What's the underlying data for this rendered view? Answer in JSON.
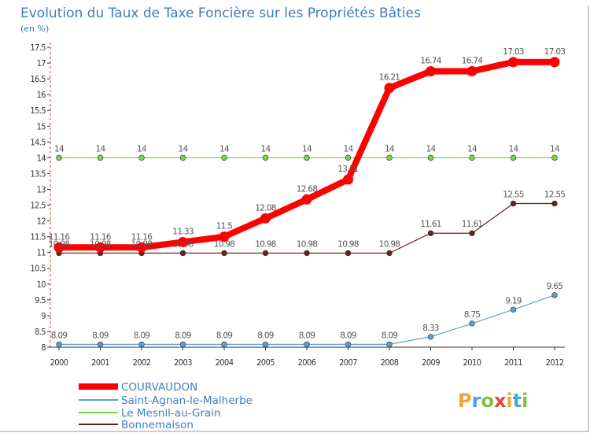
{
  "chart_data": {
    "type": "line",
    "title": "Evolution du Taux de Taxe Foncière sur les Propriétés Bâties",
    "subtitle": "(en %)",
    "xlabel": "",
    "ylabel": "(en %)",
    "ylim": [
      8,
      17.5
    ],
    "yticks": [
      "8",
      "8.5",
      "9",
      "9.5",
      "10",
      "10.5",
      "11",
      "11.5",
      "12",
      "12.5",
      "13",
      "13.5",
      "14",
      "14.5",
      "15",
      "15.5",
      "16",
      "16.5",
      "17",
      "17.5"
    ],
    "x": [
      "2000",
      "2001",
      "2002",
      "2003",
      "2004",
      "2005",
      "2006",
      "2007",
      "2008",
      "2009",
      "2010",
      "2011",
      "2012"
    ],
    "grid": false,
    "legend_position": "bottom-left",
    "series": [
      {
        "name": "Bonnemaison",
        "color": "#6b1f1f",
        "values": [
          10.98,
          10.98,
          10.98,
          10.98,
          10.98,
          10.98,
          10.98,
          10.98,
          10.98,
          11.61,
          11.61,
          12.55,
          12.55
        ],
        "labels": [
          "10.98",
          "10.98",
          "10.98",
          "10.98",
          "10.98",
          "10.98",
          "10.98",
          "10.98",
          "10.98",
          "11.61",
          "11.61",
          "12.55",
          "12.55"
        ]
      },
      {
        "name": "Le Mesnil-au-Grain",
        "color": "#7dd34a",
        "values": [
          14,
          14,
          14,
          14,
          14,
          14,
          14,
          14,
          14,
          14,
          14,
          14,
          14
        ],
        "labels": [
          "14",
          "14",
          "14",
          "14",
          "14",
          "14",
          "14",
          "14",
          "14",
          "14",
          "14",
          "14",
          "14"
        ]
      },
      {
        "name": "Saint-Agnan-le-Malherbe",
        "color": "#5b9fd6",
        "values": [
          8.09,
          8.09,
          8.09,
          8.09,
          8.09,
          8.09,
          8.09,
          8.09,
          8.09,
          8.33,
          8.75,
          9.19,
          9.65
        ],
        "labels": [
          "8.09",
          "8.09",
          "8.09",
          "8.09",
          "8.09",
          "8.09",
          "8.09",
          "8.09",
          "8.09",
          "8.33",
          "8.75",
          "9.19",
          "9.65"
        ]
      },
      {
        "name": "COURVAUDON",
        "color": "#ff0000",
        "values": [
          11.16,
          11.16,
          11.16,
          11.33,
          11.5,
          12.08,
          12.68,
          13.31,
          16.21,
          16.74,
          16.74,
          17.03,
          17.03
        ],
        "labels": [
          "11.16",
          "11.16",
          "11.16",
          "11.33",
          "11.5",
          "12.08",
          "12.68",
          "13.31",
          "16.21",
          "16.74",
          "16.74",
          "17.03",
          "17.03"
        ]
      }
    ],
    "legend": [
      "COURVAUDON",
      "Saint-Agnan-le-Malherbe",
      "Le Mesnil-au-Grain",
      "Bonnemaison"
    ]
  },
  "logo": {
    "text": "Proxiti",
    "colors": [
      "#f2a33a",
      "#4aa3df",
      "#7cc243",
      "#e8473c",
      "#f2a33a",
      "#4aa3df",
      "#7cc243"
    ]
  }
}
